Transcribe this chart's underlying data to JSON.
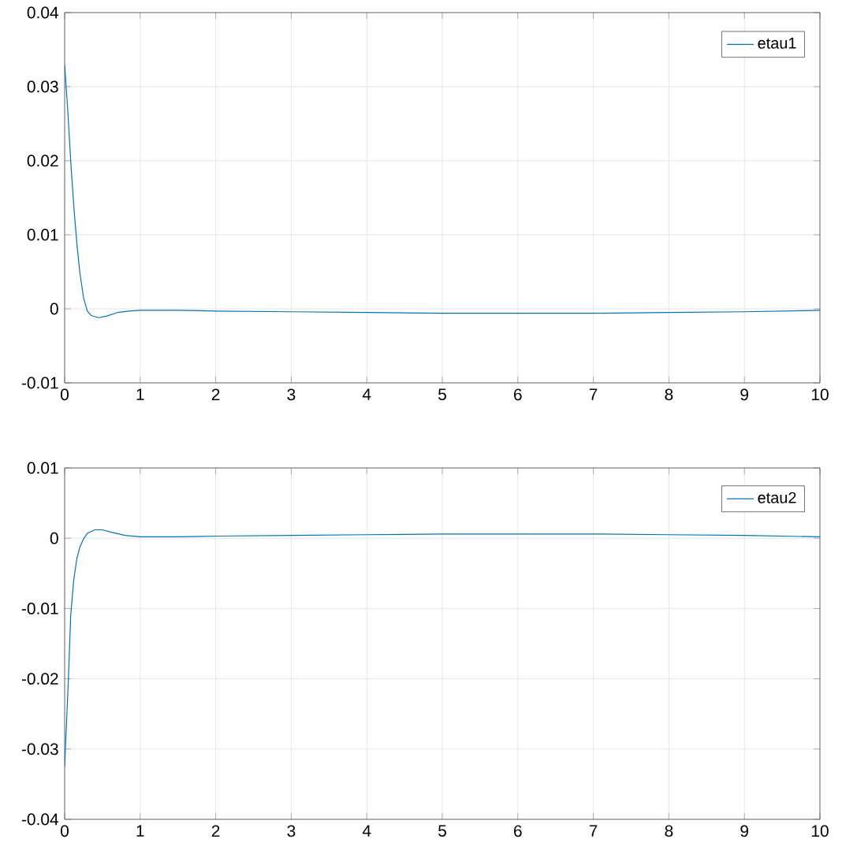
{
  "chart_data": [
    {
      "type": "line",
      "xlim": [
        0,
        10
      ],
      "ylim": [
        -0.01,
        0.04
      ],
      "xticks": [
        0,
        1,
        2,
        3,
        4,
        5,
        6,
        7,
        8,
        9,
        10
      ],
      "yticks": [
        -0.01,
        0,
        0.01,
        0.02,
        0.03,
        0.04
      ],
      "grid": true,
      "legend": "top right",
      "x": [
        0,
        0.04,
        0.08,
        0.12,
        0.16,
        0.2,
        0.25,
        0.3,
        0.35,
        0.45,
        0.55,
        0.7,
        0.85,
        1,
        1.5,
        2,
        3,
        4,
        5,
        6,
        7,
        8,
        9,
        10
      ],
      "series": [
        {
          "name": "etau1",
          "color": "#0072bd",
          "values": [
            0.033,
            0.027,
            0.02,
            0.014,
            0.009,
            0.005,
            0.0015,
            -0.0003,
            -0.0009,
            -0.0012,
            -0.001,
            -0.0005,
            -0.0003,
            -0.0002,
            -0.0002,
            -0.0003,
            -0.0004,
            -0.0005,
            -0.0006,
            -0.0006,
            -0.0006,
            -0.0005,
            -0.0004,
            -0.0002
          ]
        }
      ]
    },
    {
      "type": "line",
      "xlim": [
        0,
        10
      ],
      "ylim": [
        -0.04,
        0.01
      ],
      "xticks": [
        0,
        1,
        2,
        3,
        4,
        5,
        6,
        7,
        8,
        9,
        10
      ],
      "yticks": [
        -0.04,
        -0.03,
        -0.02,
        -0.01,
        0,
        0.01
      ],
      "grid": true,
      "legend": "top right",
      "x": [
        0,
        0.03,
        0.05,
        0.08,
        0.12,
        0.16,
        0.2,
        0.25,
        0.3,
        0.4,
        0.5,
        0.6,
        0.8,
        1,
        1.5,
        2,
        3,
        4,
        5,
        6,
        7,
        8,
        9,
        10
      ],
      "series": [
        {
          "name": "etau2",
          "color": "#0072bd",
          "values": [
            -0.0325,
            -0.025,
            -0.02,
            -0.011,
            -0.006,
            -0.003,
            -0.0013,
            -0.0001,
            0.0007,
            0.0012,
            0.0012,
            0.0009,
            0.0004,
            0.0002,
            0.0002,
            0.0003,
            0.0004,
            0.0005,
            0.0006,
            0.0006,
            0.0006,
            0.0005,
            0.0004,
            0.0002
          ]
        }
      ]
    }
  ]
}
